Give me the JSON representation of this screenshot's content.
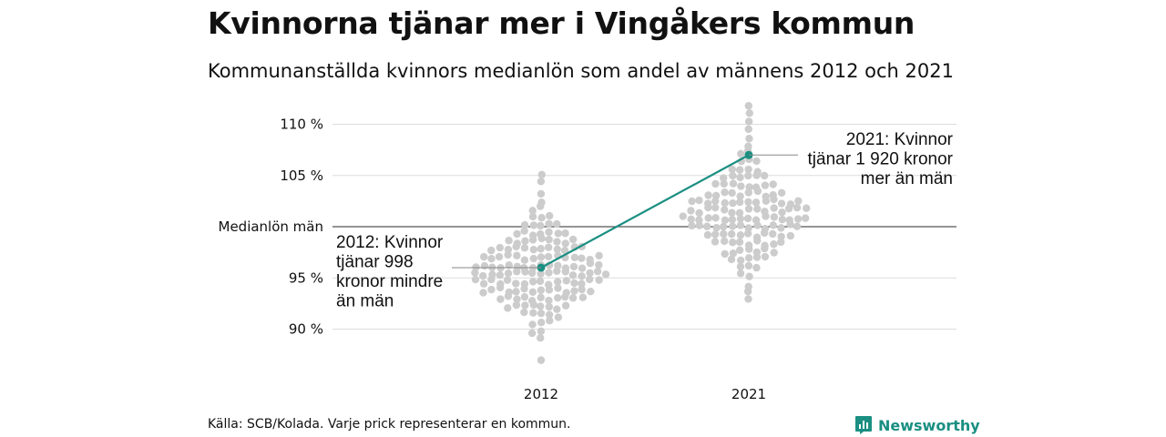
{
  "title": "Kvinnorna tjänar mer i Vingåkers kommun",
  "subtitle": "Kommunanställda kvinnors medianlön som andel av männens 2012 och 2021",
  "source": "Källa: SCB/Kolada. Varje prick representerar en kommun.",
  "brand": "Newsworthy",
  "colors": {
    "dots": "#cccccc",
    "highlight": "#1a8f82",
    "grid": "#dddddd",
    "reference": "#555555"
  },
  "chart_data": {
    "type": "scatter",
    "title": "Kvinnorna tjänar mer i Vingåkers kommun",
    "subtitle": "Kommunanställda kvinnors medianlön som andel av männens 2012 och 2021",
    "categories": [
      "2012",
      "2021"
    ],
    "ylim": [
      86.5,
      111.5
    ],
    "yticks": [
      {
        "value": 90,
        "label": "90 %"
      },
      {
        "value": 95,
        "label": "95 %"
      },
      {
        "value": 100,
        "label": "Medianlön män"
      },
      {
        "value": 105,
        "label": "105 %"
      },
      {
        "value": 110,
        "label": "110 %"
      }
    ],
    "reference_line": 100,
    "grid": true,
    "distribution": [
      {
        "year": "2012",
        "range": [
          87.0,
          105.2
        ],
        "profile": [
          [
            87.0,
            1
          ],
          [
            88.0,
            0
          ],
          [
            89.0,
            1
          ],
          [
            89.8,
            2
          ],
          [
            90.6,
            3
          ],
          [
            91.4,
            5
          ],
          [
            92.2,
            8
          ],
          [
            93.0,
            11
          ],
          [
            93.8,
            14
          ],
          [
            94.6,
            16
          ],
          [
            95.4,
            17
          ],
          [
            96.2,
            16
          ],
          [
            97.0,
            15
          ],
          [
            97.8,
            12
          ],
          [
            98.6,
            9
          ],
          [
            99.4,
            7
          ],
          [
            100.2,
            5
          ],
          [
            101.0,
            3
          ],
          [
            101.8,
            2
          ],
          [
            102.6,
            1
          ],
          [
            103.4,
            1
          ],
          [
            104.2,
            1
          ],
          [
            105.0,
            1
          ]
        ]
      },
      {
        "year": "2021",
        "range": [
          92.8,
          112.2
        ],
        "profile": [
          [
            92.8,
            1
          ],
          [
            93.6,
            1
          ],
          [
            94.4,
            1
          ],
          [
            95.2,
            2
          ],
          [
            96.0,
            3
          ],
          [
            96.8,
            5
          ],
          [
            97.6,
            7
          ],
          [
            98.4,
            9
          ],
          [
            99.2,
            11
          ],
          [
            100.0,
            14
          ],
          [
            100.8,
            16
          ],
          [
            101.6,
            15
          ],
          [
            102.4,
            14
          ],
          [
            103.2,
            10
          ],
          [
            104.0,
            8
          ],
          [
            104.8,
            6
          ],
          [
            105.6,
            4
          ],
          [
            106.4,
            3
          ],
          [
            107.2,
            2
          ],
          [
            108.0,
            1
          ],
          [
            108.8,
            1
          ],
          [
            109.6,
            1
          ],
          [
            110.4,
            1
          ],
          [
            111.2,
            1
          ],
          [
            112.0,
            1
          ]
        ]
      }
    ],
    "highlight": {
      "name": "Vingåkers kommun",
      "points": [
        {
          "x": "2012",
          "y": 96.0
        },
        {
          "x": "2021",
          "y": 107.0
        }
      ],
      "annotations": [
        {
          "x": "2012",
          "y": 96.0,
          "lines": [
            "2012: Kvinnor",
            "tjänar 998",
            "kronor mindre",
            "än män"
          ]
        },
        {
          "x": "2021",
          "y": 107.0,
          "lines": [
            "2021: Kvinnor",
            "tjänar 1 920 kronor",
            "mer än män"
          ]
        }
      ]
    }
  }
}
